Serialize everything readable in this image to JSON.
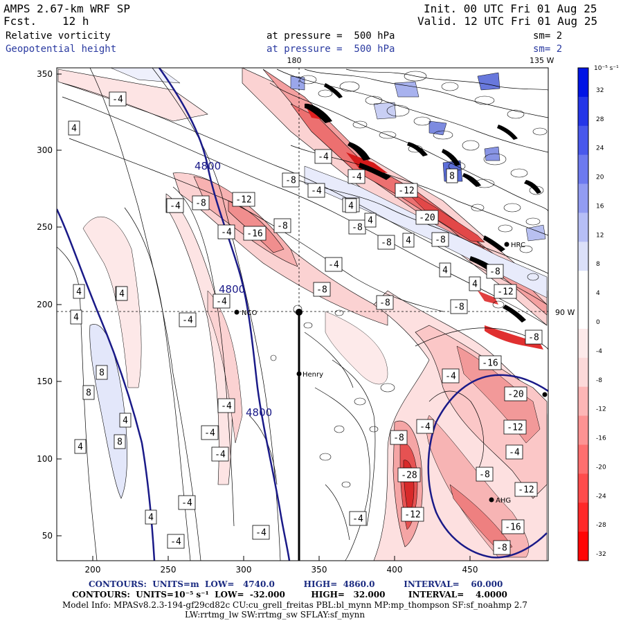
{
  "header": {
    "model_title": "AMPS 2.67-km WRF SP",
    "fcst_label": "Fcst.",
    "fcst_value": "12 h",
    "init": "Init. 00 UTC Fri 01 Aug 25",
    "valid": "Valid. 12 UTC Fri 01 Aug 25",
    "field1_name": "Relative vorticity",
    "field1_level": "at pressure =  500 hPa",
    "field1_sm": "sm= 2",
    "field2_name": "Geopotential height",
    "field2_level": "at pressure =  500 hPa",
    "field2_sm": "sm= 2",
    "lon_top_180": "180",
    "lon_top_135": "135 W",
    "lon_right_90": "90 W"
  },
  "axes": {
    "x_ticks": [
      "200",
      "250",
      "300",
      "350",
      "400",
      "450"
    ],
    "y_ticks": [
      "350",
      "300",
      "250",
      "200",
      "150",
      "100",
      "50"
    ]
  },
  "colorbar": {
    "unit_label": "10⁻⁵ s⁻¹",
    "ticks": [
      "32",
      "28",
      "24",
      "20",
      "16",
      "12",
      "8",
      "4",
      "0",
      "-4",
      "-8",
      "-12",
      "-16",
      "-20",
      "-24",
      "-28",
      "-32"
    ],
    "positive_color": "#0a1ee6",
    "negative_color": "#ff1010"
  },
  "stations": {
    "henry": "Henry",
    "nco": "NCO",
    "hrc": "HRC",
    "ahg": "AHG"
  },
  "height_labels": [
    "4800",
    "4800",
    "4800"
  ],
  "vort_labels": [
    "-4",
    "4",
    "-4",
    "4",
    "-4",
    "-4",
    "-8",
    "-4",
    "-4",
    "-8",
    "-12",
    "-12",
    "-8",
    "-4",
    "-16",
    "-8",
    "4",
    "-8",
    "4",
    "-20",
    "4",
    "-4",
    "-8",
    "-4",
    "-8",
    "8",
    "-8",
    "-4",
    "-8",
    "-12",
    "4",
    "4",
    "4",
    "4",
    "-4",
    "8",
    "8",
    "8",
    "4",
    "-4",
    "-4",
    "-4",
    "-4",
    "-16",
    "-4",
    "-20",
    "-4",
    "-12",
    "-8",
    "-28",
    "-4",
    "-8",
    "-12",
    "-12",
    "-8",
    "4",
    "4",
    "-4",
    "-4",
    "4",
    "-4",
    "-16",
    "-8",
    "-8"
  ],
  "footer": {
    "line1": "CONTOURS:  UNITS=m  LOW=   4740.0          HIGH=  4860.0          INTERVAL=    60.000",
    "line2": "CONTOURS:  UNITS=10⁻⁵ s⁻¹  LOW=  -32.000         HIGH=   32.000        INTERVAL=    4.0000",
    "line3": "Model Info: MPASv8.2.3-194-gf29cd82c CU:cu_grell_freitas PBL:bl_mynn MP:mp_thompson SF:sf_noahmp 2.7",
    "line4": "LW:rrtmg_lw SW:rrtmg_sw SFLAY:sf_mynn"
  }
}
